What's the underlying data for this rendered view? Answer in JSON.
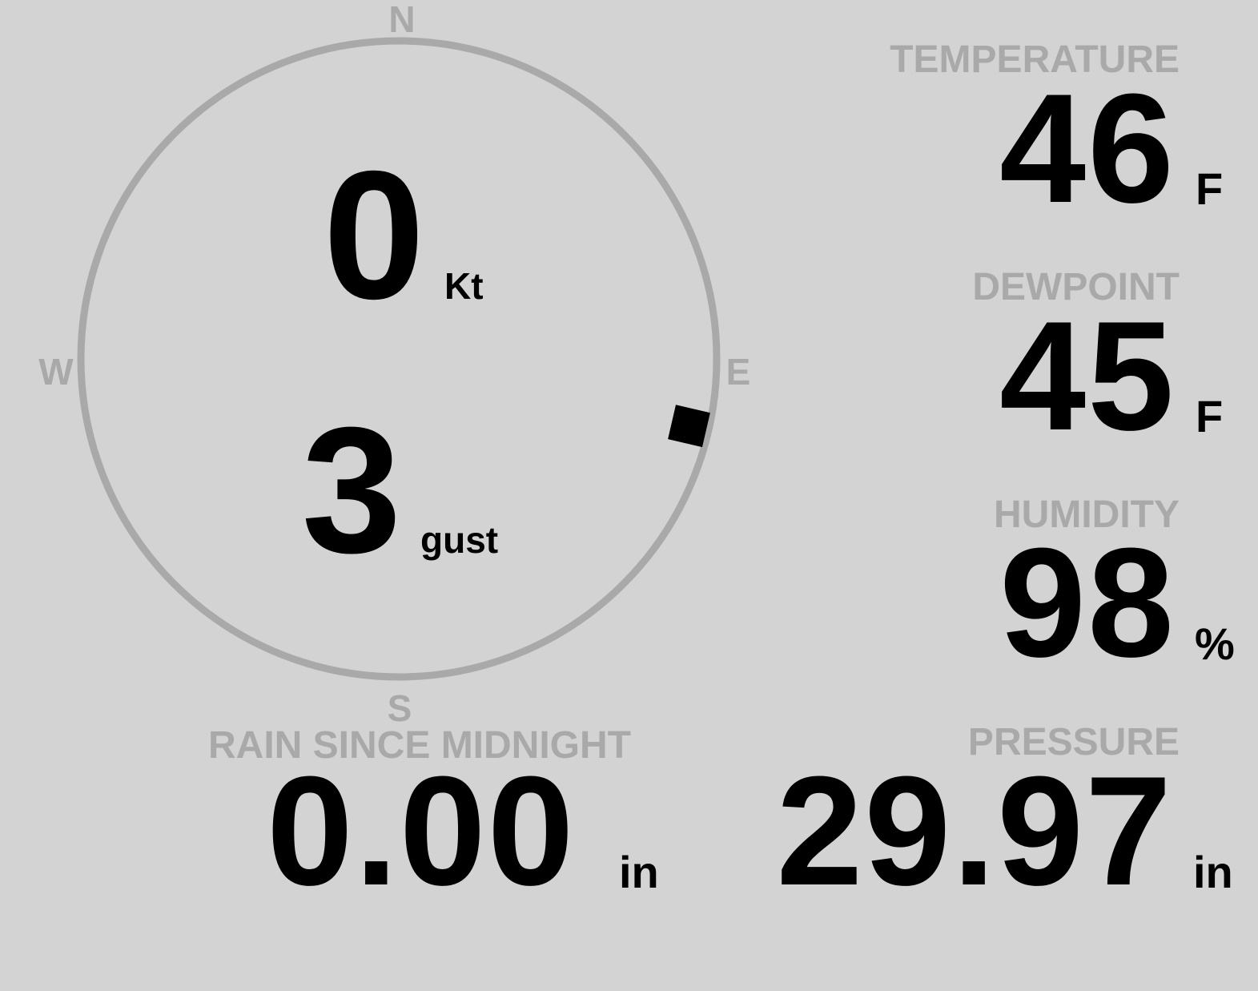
{
  "compass": {
    "north": "N",
    "south": "S",
    "east": "E",
    "west": "W",
    "wind_direction_deg": 103,
    "ring_color": "#a9a9a9",
    "marker_color": "#000000"
  },
  "wind": {
    "speed": "0",
    "speed_unit": "Kt",
    "gust": "3",
    "gust_unit": "gust"
  },
  "temperature": {
    "label": "TEMPERATURE",
    "value": "46",
    "unit": "F"
  },
  "dewpoint": {
    "label": "DEWPOINT",
    "value": "45",
    "unit": "F"
  },
  "humidity": {
    "label": "HUMIDITY",
    "value": "98",
    "unit": "%"
  },
  "pressure": {
    "label": "PRESSURE",
    "value": "29.97",
    "unit": "in"
  },
  "rain": {
    "label": "RAIN SINCE MIDNIGHT",
    "value": "0.00",
    "unit": "in"
  },
  "colors": {
    "background": "#d3d3d3",
    "label": "#a9a9a9",
    "value": "#000000"
  }
}
